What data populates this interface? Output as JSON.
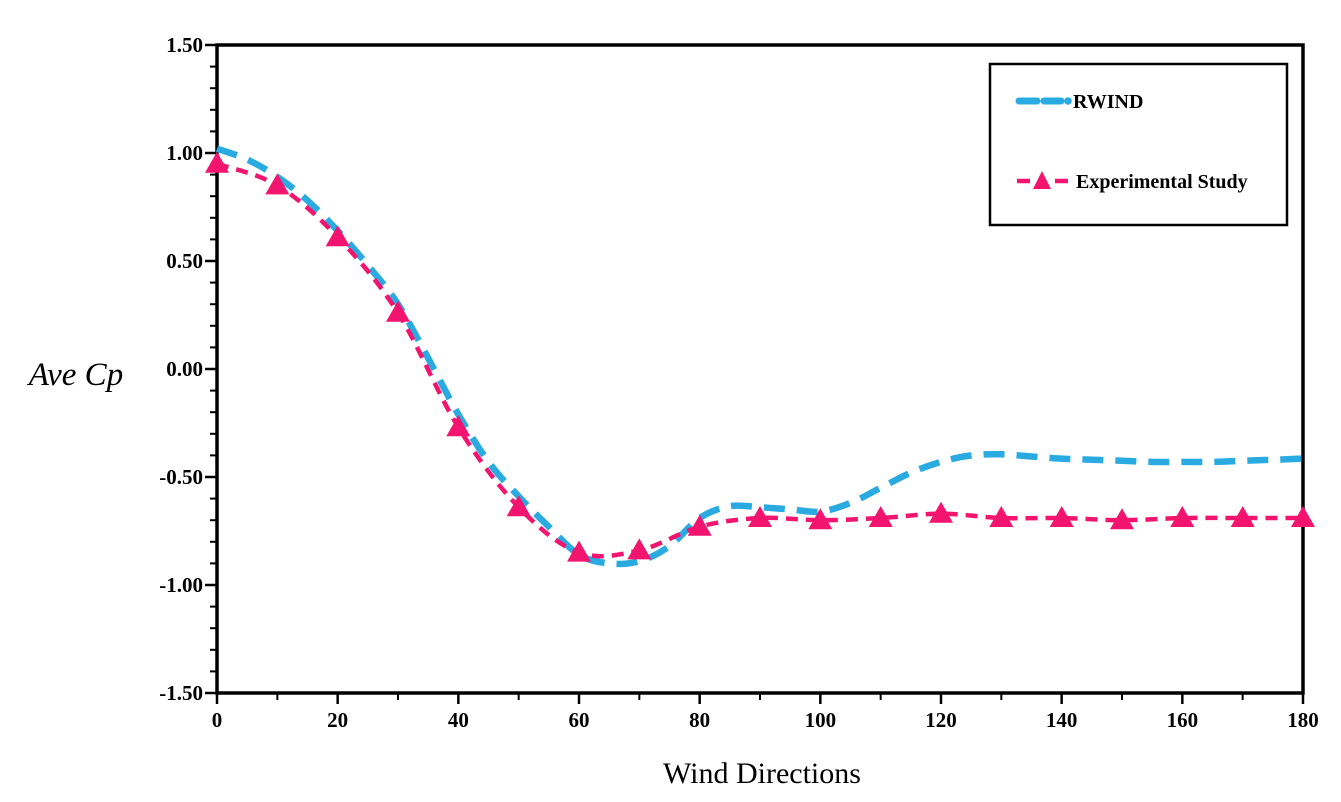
{
  "chart_data": {
    "type": "line",
    "title": "",
    "xlabel": "Wind Directions",
    "ylabel": "Ave Cp",
    "xlim": [
      0,
      180
    ],
    "ylim": [
      -1.5,
      1.5
    ],
    "x_tick_labels": [
      "0",
      "20",
      "40",
      "60",
      "80",
      "100",
      "120",
      "140",
      "160",
      "180"
    ],
    "y_tick_labels": [
      "1.50",
      "1.00",
      "0.50",
      "0.00",
      "-0.50",
      "-1.00",
      "-1.50"
    ],
    "x_minor_tick_step": 10,
    "y_minor_tick_step": 0.1,
    "grid": false,
    "legend_position": "top-right",
    "frame": true,
    "colors": {
      "rwind": "#29ABE2",
      "experimental": "#F2146E",
      "axis": "#000000",
      "background": "#FFFFFF"
    },
    "series": [
      {
        "name": "RWIND",
        "color": "#29ABE2",
        "style": "dashed",
        "marker": "none",
        "x": [
          0,
          5,
          10,
          15,
          20,
          25,
          30,
          35,
          40,
          45,
          50,
          55,
          60,
          65,
          70,
          75,
          80,
          85,
          90,
          95,
          100,
          105,
          110,
          115,
          120,
          125,
          130,
          135,
          140,
          145,
          150,
          155,
          160,
          165,
          170,
          175,
          180
        ],
        "values": [
          1.02,
          0.97,
          0.89,
          0.78,
          0.64,
          0.48,
          0.3,
          0.05,
          -0.21,
          -0.43,
          -0.59,
          -0.73,
          -0.86,
          -0.9,
          -0.89,
          -0.82,
          -0.69,
          -0.635,
          -0.64,
          -0.65,
          -0.66,
          -0.62,
          -0.55,
          -0.48,
          -0.43,
          -0.4,
          -0.395,
          -0.405,
          -0.415,
          -0.42,
          -0.425,
          -0.43,
          -0.43,
          -0.43,
          -0.425,
          -0.42,
          -0.415
        ]
      },
      {
        "name": "Experimental Study",
        "color": "#F2146E",
        "style": "dashed",
        "marker": "triangle",
        "x": [
          0,
          10,
          20,
          30,
          40,
          50,
          60,
          70,
          80,
          90,
          100,
          110,
          120,
          130,
          140,
          150,
          160,
          170,
          180
        ],
        "values": [
          0.95,
          0.85,
          0.61,
          0.26,
          -0.27,
          -0.64,
          -0.85,
          -0.84,
          -0.73,
          -0.69,
          -0.7,
          -0.69,
          -0.67,
          -0.69,
          -0.69,
          -0.7,
          -0.69,
          -0.69,
          -0.69
        ]
      }
    ]
  }
}
